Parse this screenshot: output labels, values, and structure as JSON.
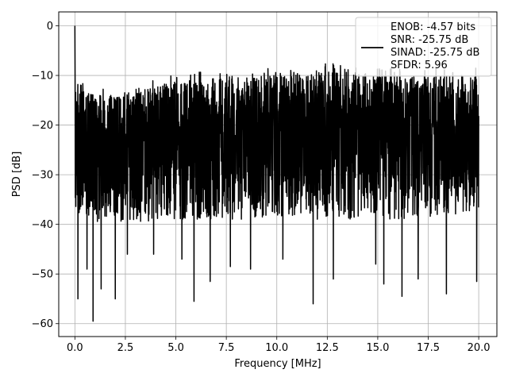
{
  "chart_data": {
    "type": "line",
    "title": "",
    "xlabel": "Frequency [MHz]",
    "ylabel": "PSD [dB]",
    "xlim": [
      -0.8,
      20.9
    ],
    "ylim": [
      -62.6,
      2.8
    ],
    "xticks": [
      0.0,
      2.5,
      5.0,
      7.5,
      10.0,
      12.5,
      15.0,
      17.5,
      20.0
    ],
    "xtick_labels": [
      "0.0",
      "2.5",
      "5.0",
      "7.5",
      "10.0",
      "12.5",
      "15.0",
      "17.5",
      "20.0"
    ],
    "yticks": [
      0,
      -10,
      -20,
      -30,
      -40,
      -50,
      -60
    ],
    "ytick_labels": [
      "0",
      "−10",
      "−20",
      "−30",
      "−40",
      "−50",
      "−60"
    ],
    "grid": true,
    "legend_placement": "top-right",
    "series": [
      {
        "name": "ENOB: -4.57 bits\nSNR: -25.75 dB\nSINAD: -25.75 dB\nSFDR: 5.96",
        "color": "#000000",
        "x_range": [
          0,
          20
        ],
        "peak": {
          "x": 0.0,
          "y": 0.0
        },
        "envelope": [
          {
            "x": 0.0,
            "upper": -11,
            "lower": -39
          },
          {
            "x": 1.0,
            "upper": -14,
            "lower": -40
          },
          {
            "x": 2.5,
            "upper": -14,
            "lower": -40
          },
          {
            "x": 5.0,
            "upper": -11,
            "lower": -39
          },
          {
            "x": 7.5,
            "upper": -10,
            "lower": -39
          },
          {
            "x": 10.0,
            "upper": -10,
            "lower": -39
          },
          {
            "x": 12.5,
            "upper": -9,
            "lower": -39
          },
          {
            "x": 15.0,
            "upper": -10,
            "lower": -39
          },
          {
            "x": 17.5,
            "upper": -10,
            "lower": -39
          },
          {
            "x": 20.0,
            "upper": -10,
            "lower": -37
          }
        ],
        "dips": [
          {
            "x": 0.15,
            "y": -55
          },
          {
            "x": 0.6,
            "y": -49
          },
          {
            "x": 0.9,
            "y": -59.5
          },
          {
            "x": 1.3,
            "y": -53
          },
          {
            "x": 2.0,
            "y": -55
          },
          {
            "x": 2.6,
            "y": -46
          },
          {
            "x": 3.9,
            "y": -46
          },
          {
            "x": 5.3,
            "y": -47
          },
          {
            "x": 5.9,
            "y": -55.5
          },
          {
            "x": 6.7,
            "y": -51.5
          },
          {
            "x": 7.7,
            "y": -48.5
          },
          {
            "x": 8.7,
            "y": -49
          },
          {
            "x": 10.3,
            "y": -47
          },
          {
            "x": 11.8,
            "y": -56
          },
          {
            "x": 12.8,
            "y": -51
          },
          {
            "x": 14.9,
            "y": -48
          },
          {
            "x": 15.3,
            "y": -52
          },
          {
            "x": 16.2,
            "y": -54.5
          },
          {
            "x": 17.0,
            "y": -51
          },
          {
            "x": 18.4,
            "y": -54
          },
          {
            "x": 19.9,
            "y": -51.5
          }
        ]
      }
    ]
  }
}
